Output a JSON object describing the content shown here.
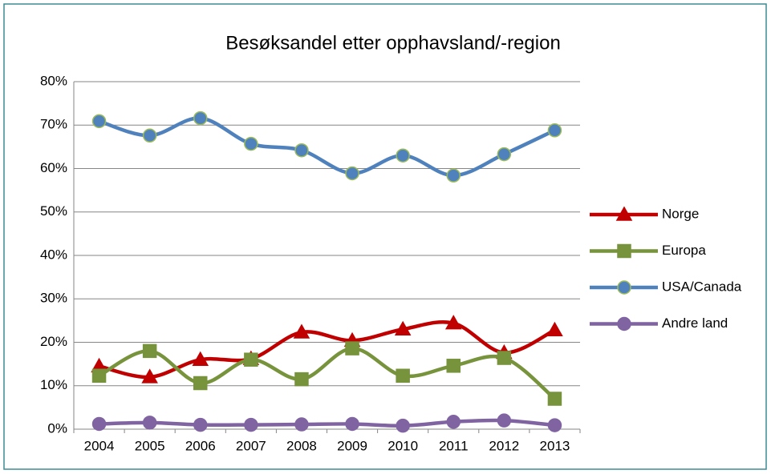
{
  "chart_data": {
    "type": "line",
    "title": "Besøksandel etter opphavsland/-region",
    "categories": [
      "2004",
      "2005",
      "2006",
      "2007",
      "2008",
      "2009",
      "2010",
      "2011",
      "2012",
      "2013"
    ],
    "series": [
      {
        "name": "Norge",
        "color": "#c00000",
        "marker": "triangle",
        "values": [
          14.5,
          12,
          16,
          16.2,
          22.3,
          20.4,
          23,
          24.4,
          17.6,
          22.8
        ]
      },
      {
        "name": "Europa",
        "color": "#77933c",
        "marker": "square",
        "values": [
          12.3,
          18,
          10.6,
          16,
          11.5,
          18.6,
          12.3,
          14.6,
          16.4,
          7
        ]
      },
      {
        "name": "USA/Canada",
        "color": "#4f81bd",
        "marker": "circle",
        "values": [
          70.9,
          67.6,
          71.6,
          65.7,
          64.2,
          58.9,
          63,
          58.4,
          63.3,
          68.8
        ]
      },
      {
        "name": "Andre land",
        "color": "#8064a2",
        "marker": "circle",
        "values": [
          1.2,
          1.5,
          1,
          1,
          1.1,
          1.2,
          0.8,
          1.7,
          2,
          0.9
        ]
      }
    ],
    "ylim": [
      0,
      80
    ],
    "yticks": [
      {
        "value": 0,
        "label": "0%"
      },
      {
        "value": 10,
        "label": "10%"
      },
      {
        "value": 20,
        "label": "20%"
      },
      {
        "value": 30,
        "label": "30%"
      },
      {
        "value": 40,
        "label": "40%"
      },
      {
        "value": 50,
        "label": "50%"
      },
      {
        "value": 60,
        "label": "60%"
      },
      {
        "value": 70,
        "label": "70%"
      },
      {
        "value": 80,
        "label": "80%"
      }
    ],
    "grid": true,
    "legend": "right"
  }
}
